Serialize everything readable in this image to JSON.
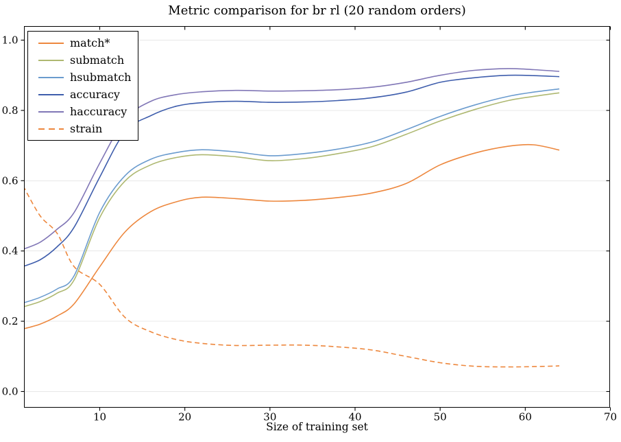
{
  "figure": {
    "title": "Metric comparison for br rl (20 random orders)",
    "xlabel": "Size of training set"
  },
  "style": {
    "background": "#ffffff",
    "grid_color": "#e8e8e8",
    "spine_color": "#000000",
    "tick_color": "#000000",
    "series_colors": {
      "match": "#ed873d",
      "submatch": "#aeb871",
      "hsubmatch": "#6a9bce",
      "accuracy": "#3e5dac",
      "haccuracy": "#8076b6",
      "strain": "#ed873d"
    }
  },
  "chart_data": {
    "type": "line",
    "title": "Metric comparison for br rl (20 random orders)",
    "xlabel": "Size of training set",
    "ylabel": "",
    "grid": "horizontal",
    "legend_position": "upper-left",
    "xlim": [
      1.14,
      69.92
    ],
    "ylim": [
      -0.045,
      1.039
    ],
    "x_ticks": [
      10,
      20,
      30,
      40,
      50,
      60,
      70
    ],
    "x_tick_labels": [
      "10",
      "20",
      "30",
      "40",
      "50",
      "60",
      "70"
    ],
    "y_ticks": [
      0.0,
      0.2,
      0.4,
      0.6,
      0.8,
      1.0
    ],
    "y_tick_labels": [
      "0.0",
      "0.2",
      "0.4",
      "0.6",
      "0.8",
      "1.0"
    ],
    "x": [
      1,
      3,
      5,
      7,
      10,
      13,
      16,
      19,
      22,
      26,
      30,
      34,
      38,
      42,
      46,
      50,
      54,
      58,
      61,
      64
    ],
    "series": [
      {
        "name": "match*",
        "color": "#ed873d",
        "dash": "solid",
        "values": [
          0.178,
          0.192,
          0.215,
          0.25,
          0.355,
          0.455,
          0.512,
          0.54,
          0.553,
          0.549,
          0.542,
          0.544,
          0.552,
          0.565,
          0.592,
          0.645,
          0.678,
          0.698,
          0.702,
          0.687
        ]
      },
      {
        "name": "submatch",
        "color": "#aeb871",
        "dash": "solid",
        "values": [
          0.241,
          0.256,
          0.28,
          0.318,
          0.495,
          0.6,
          0.645,
          0.666,
          0.674,
          0.668,
          0.657,
          0.663,
          0.677,
          0.697,
          0.732,
          0.77,
          0.802,
          0.828,
          0.84,
          0.85
        ]
      },
      {
        "name": "hsubmatch",
        "color": "#6a9bce",
        "dash": "solid",
        "values": [
          0.252,
          0.268,
          0.292,
          0.33,
          0.51,
          0.615,
          0.661,
          0.68,
          0.688,
          0.682,
          0.671,
          0.677,
          0.69,
          0.71,
          0.745,
          0.783,
          0.815,
          0.84,
          0.852,
          0.861
        ]
      },
      {
        "name": "accuracy",
        "color": "#3e5dac",
        "dash": "solid",
        "values": [
          0.356,
          0.375,
          0.412,
          0.468,
          0.61,
          0.74,
          0.785,
          0.812,
          0.822,
          0.826,
          0.823,
          0.824,
          0.828,
          0.836,
          0.852,
          0.88,
          0.893,
          0.9,
          0.899,
          0.896
        ]
      },
      {
        "name": "haccuracy",
        "color": "#8076b6",
        "dash": "solid",
        "values": [
          0.405,
          0.425,
          0.462,
          0.51,
          0.65,
          0.775,
          0.826,
          0.845,
          0.853,
          0.857,
          0.855,
          0.856,
          0.859,
          0.866,
          0.88,
          0.9,
          0.914,
          0.919,
          0.916,
          0.911
        ]
      },
      {
        "name": "strain",
        "color": "#ed873d",
        "dash": "dashed",
        "values": [
          0.585,
          0.5,
          0.45,
          0.355,
          0.305,
          0.21,
          0.17,
          0.148,
          0.137,
          0.131,
          0.132,
          0.132,
          0.127,
          0.118,
          0.1,
          0.082,
          0.072,
          0.07,
          0.071,
          0.073
        ]
      }
    ]
  }
}
